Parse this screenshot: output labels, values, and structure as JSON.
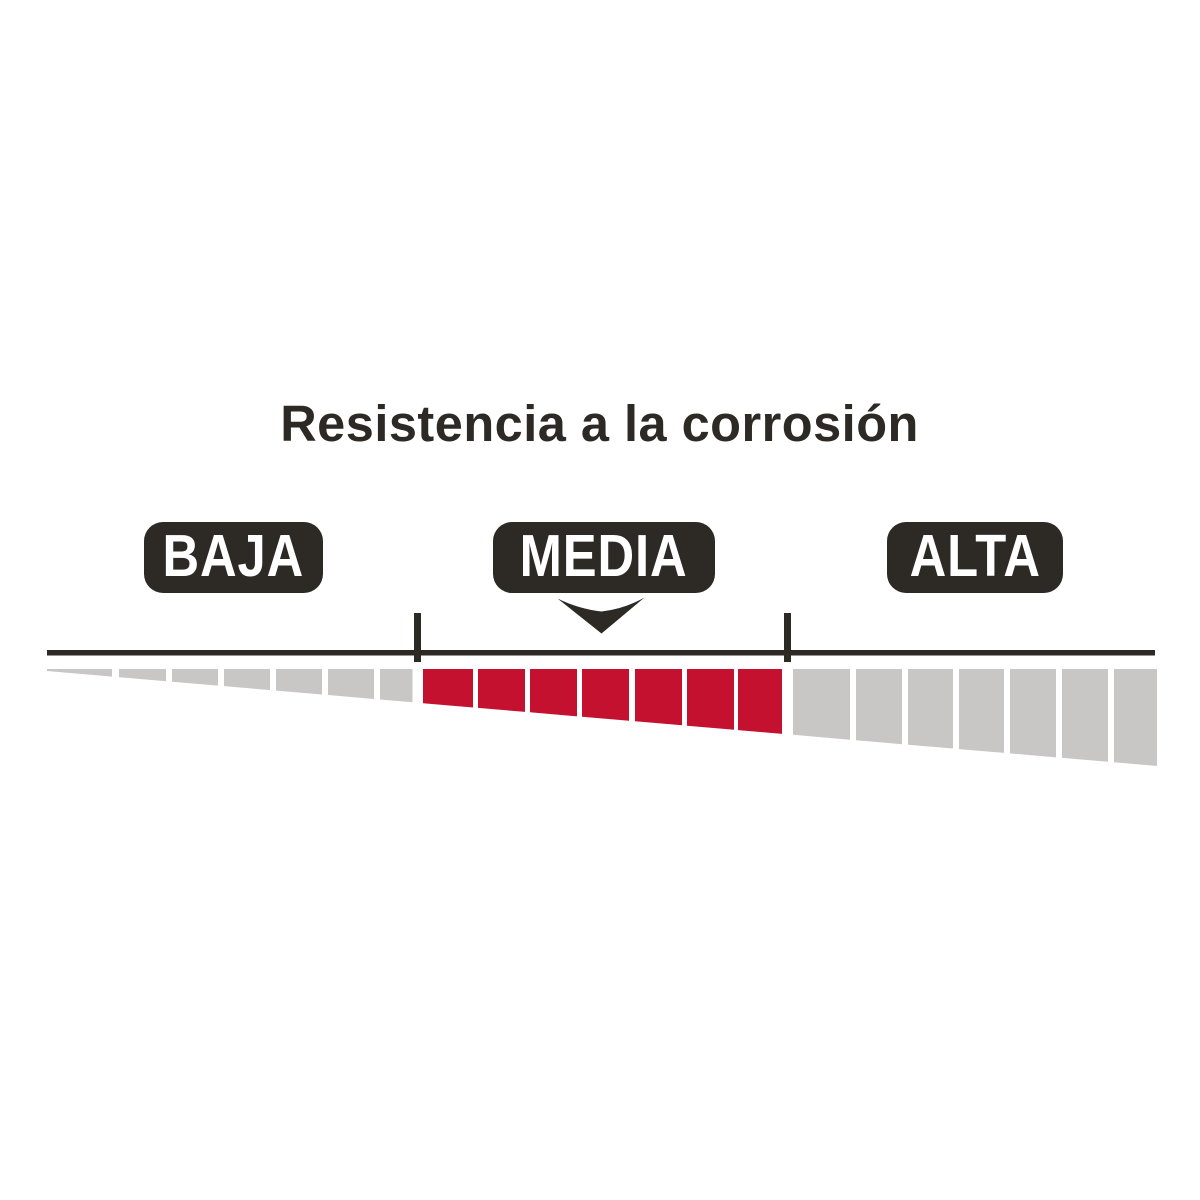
{
  "title": "Resistencia a la corrosión",
  "scale": {
    "levels": [
      {
        "label": "BAJA",
        "active": false
      },
      {
        "label": "MEDIA",
        "active": true
      },
      {
        "label": "ALTA",
        "active": false
      }
    ]
  },
  "colors": {
    "ink": "#2d2a26",
    "active_segment": "#c3112f",
    "inactive_segment": "#c8c7c5",
    "label_text": "#ffffff",
    "background": "#ffffff"
  },
  "chart_data": {
    "type": "gauge",
    "title": "Resistencia a la corrosión",
    "categories": [
      "BAJA",
      "MEDIA",
      "ALTA"
    ],
    "value": "MEDIA",
    "value_index": 1,
    "segments_per_category": 7,
    "total_segments": 21,
    "sections": [
      {
        "label": "BAJA",
        "segments": 7,
        "active": false
      },
      {
        "label": "MEDIA",
        "segments": 7,
        "active": true
      },
      {
        "label": "ALTA",
        "segments": 7,
        "active": false
      }
    ],
    "pointer_at": "MEDIA",
    "shape": "horizontal segmented wedge increasing left-to-right",
    "legend_position": "labels above scale"
  }
}
